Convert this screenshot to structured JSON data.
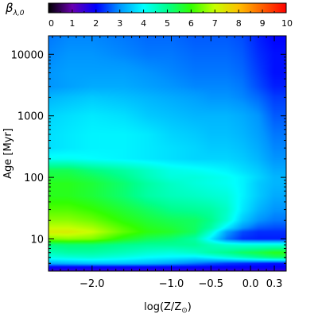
{
  "chart_data": {
    "type": "heatmap",
    "title": "",
    "colorbar": {
      "label_symbol": "β",
      "label_subscript": "λ,0",
      "range": [
        0,
        10
      ],
      "ticks": [
        "0",
        "1",
        "2",
        "3",
        "4",
        "5",
        "6",
        "7",
        "8",
        "9",
        "10"
      ],
      "placement": "top",
      "colormap": [
        {
          "v": 0.0,
          "c": "#000000"
        },
        {
          "v": 1.0,
          "c": "#6a00b0"
        },
        {
          "v": 2.0,
          "c": "#0000ff"
        },
        {
          "v": 3.0,
          "c": "#0096ff"
        },
        {
          "v": 4.0,
          "c": "#00ffff"
        },
        {
          "v": 5.0,
          "c": "#00ff8c"
        },
        {
          "v": 6.0,
          "c": "#32ff00"
        },
        {
          "v": 7.0,
          "c": "#c8ff00"
        },
        {
          "v": 8.0,
          "c": "#ffc000"
        },
        {
          "v": 9.0,
          "c": "#ff6000"
        },
        {
          "v": 10.0,
          "c": "#ff0000"
        }
      ]
    },
    "xaxis": {
      "label_prefix": "log(Z/Z",
      "label_suffix": ")",
      "label_sub": "⊙",
      "range": [
        -2.55,
        0.45
      ],
      "ticks": [
        {
          "v": -2.0,
          "label": "−2.0"
        },
        {
          "v": -1.0,
          "label": "−1.0"
        },
        {
          "v": -0.5,
          "label": "−0.5"
        },
        {
          "v": 0.0,
          "label": "0.0"
        },
        {
          "v": 0.3,
          "label": "0.3"
        }
      ]
    },
    "yaxis": {
      "label": "Age [Myr]",
      "scale": "log",
      "range": [
        3,
        20000
      ],
      "ticks": [
        {
          "v": 10,
          "label": "10"
        },
        {
          "v": 100,
          "label": "100"
        },
        {
          "v": 1000,
          "label": "1000"
        },
        {
          "v": 10000,
          "label": "10000"
        }
      ]
    },
    "metallicity_nodes": [
      -2.55,
      -2.3,
      -2.0,
      -1.6,
      -1.3,
      -1.0,
      -0.7,
      -0.5,
      -0.3,
      -0.1,
      0.1,
      0.3,
      0.45
    ],
    "age_nodes": [
      3,
      3.5,
      4,
      5,
      6,
      8,
      10,
      13,
      15,
      20,
      30,
      50,
      80,
      100,
      130,
      200,
      300,
      500,
      1000,
      2000,
      3000,
      5000,
      10000,
      20000
    ],
    "values": [
      [
        1.5,
        1.5,
        1.5,
        1.5,
        1.5,
        1.5,
        1.5,
        1.5,
        1.5,
        1.5,
        1.5,
        1.5,
        1.5
      ],
      [
        2.0,
        2.0,
        2.0,
        2.0,
        2.0,
        2.0,
        2.0,
        2.0,
        2.0,
        2.0,
        2.0,
        2.0,
        2.0
      ],
      [
        3.2,
        3.3,
        3.4,
        3.4,
        3.3,
        3.1,
        2.8,
        2.6,
        2.4,
        2.3,
        2.2,
        2.1,
        2.1
      ],
      [
        4.2,
        4.3,
        4.4,
        4.2,
        4.0,
        3.9,
        3.8,
        4.0,
        4.3,
        4.6,
        4.9,
        5.2,
        5.3
      ],
      [
        4.6,
        4.8,
        4.8,
        4.6,
        4.4,
        4.3,
        4.5,
        4.8,
        5.0,
        5.3,
        5.5,
        5.8,
        5.8
      ],
      [
        5.1,
        5.2,
        5.2,
        5.0,
        4.9,
        4.9,
        4.9,
        4.6,
        4.4,
        4.3,
        4.3,
        4.3,
        4.3
      ],
      [
        6.5,
        6.6,
        6.5,
        5.8,
        5.4,
        5.2,
        4.8,
        3.8,
        2.8,
        2.3,
        2.2,
        2.2,
        2.2
      ],
      [
        7.3,
        7.3,
        7.0,
        6.3,
        5.9,
        5.7,
        5.3,
        4.4,
        3.1,
        2.5,
        2.3,
        2.3,
        2.3
      ],
      [
        7.0,
        7.0,
        6.8,
        6.2,
        5.8,
        5.6,
        5.3,
        4.8,
        3.8,
        3.0,
        2.6,
        2.5,
        2.5
      ],
      [
        6.6,
        6.6,
        6.4,
        5.9,
        5.6,
        5.4,
        5.3,
        5.0,
        4.4,
        3.5,
        3.0,
        2.8,
        2.8
      ],
      [
        6.2,
        6.2,
        6.0,
        5.6,
        5.3,
        5.0,
        4.9,
        4.8,
        4.5,
        3.8,
        3.3,
        3.0,
        3.0
      ],
      [
        5.8,
        5.8,
        5.6,
        5.2,
        4.8,
        4.6,
        4.5,
        4.4,
        4.3,
        3.9,
        3.5,
        3.2,
        3.2
      ],
      [
        5.8,
        5.8,
        5.6,
        5.2,
        4.8,
        4.5,
        4.3,
        4.2,
        4.1,
        3.9,
        3.5,
        3.3,
        3.3
      ],
      [
        5.6,
        5.6,
        5.4,
        5.0,
        4.6,
        4.3,
        4.3,
        4.2,
        4.1,
        3.9,
        3.6,
        3.3,
        3.3
      ],
      [
        5.4,
        5.4,
        5.1,
        4.8,
        4.5,
        4.2,
        4.1,
        4.0,
        3.9,
        3.7,
        3.5,
        3.2,
        3.2
      ],
      [
        4.1,
        4.1,
        4.0,
        3.9,
        3.8,
        3.7,
        3.6,
        3.6,
        3.6,
        3.5,
        3.3,
        3.0,
        3.0
      ],
      [
        3.7,
        3.8,
        3.9,
        3.9,
        3.8,
        3.7,
        3.6,
        3.5,
        3.5,
        3.4,
        3.2,
        2.9,
        2.9
      ],
      [
        3.7,
        3.8,
        3.9,
        3.9,
        3.8,
        3.6,
        3.5,
        3.4,
        3.4,
        3.3,
        3.1,
        2.8,
        2.8
      ],
      [
        3.6,
        3.7,
        3.8,
        3.7,
        3.5,
        3.4,
        3.3,
        3.3,
        3.3,
        3.2,
        3.0,
        2.6,
        2.6
      ],
      [
        3.3,
        3.4,
        3.5,
        3.4,
        3.3,
        3.2,
        3.1,
        3.0,
        3.0,
        2.9,
        2.7,
        2.4,
        2.4
      ],
      [
        3.0,
        3.1,
        3.2,
        3.2,
        3.1,
        3.0,
        2.9,
        2.9,
        2.9,
        2.8,
        2.5,
        2.2,
        2.2
      ],
      [
        3.0,
        3.1,
        3.1,
        3.1,
        3.0,
        2.9,
        2.8,
        2.8,
        2.8,
        2.7,
        2.4,
        2.1,
        2.1
      ],
      [
        2.9,
        3.0,
        3.0,
        2.9,
        2.8,
        2.8,
        2.7,
        2.7,
        2.7,
        2.6,
        2.3,
        2.1,
        2.1
      ],
      [
        2.8,
        2.9,
        2.9,
        2.8,
        2.7,
        2.7,
        2.6,
        2.6,
        2.6,
        2.5,
        2.2,
        2.0,
        2.0
      ]
    ]
  }
}
